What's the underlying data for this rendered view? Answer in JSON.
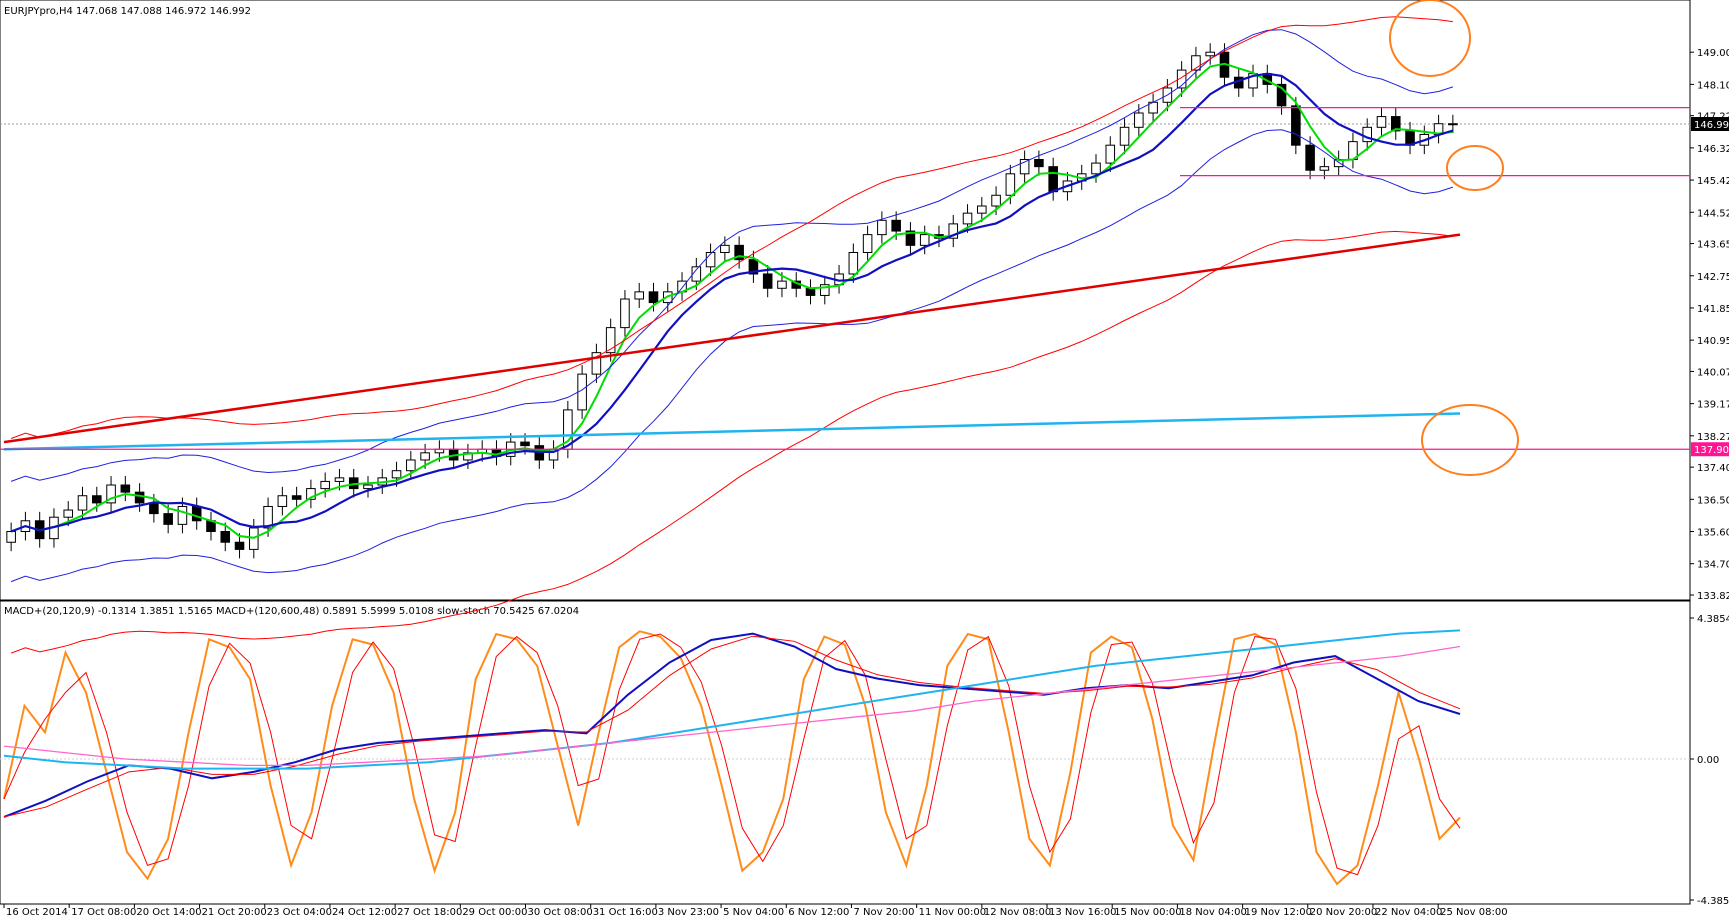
{
  "window": {
    "symbol_header": "EURJPYpro,H4  147.068 147.088 146.972 146.992",
    "indicator_header": "MACD+(20,120,9) -0.1314 1.3851 1.5165   MACD+(120,600,48) 0.5891 5.5999 5.0108   slow-stoch 70.5425 67.0204"
  },
  "chart_data": [
    {
      "type": "candlestick",
      "symbol": "EURJPYpro",
      "timeframe": "H4",
      "ohlc_last": {
        "open": 147.068,
        "high": 147.088,
        "low": 146.972,
        "close": 146.992
      },
      "ylim": [
        133.825,
        149.9
      ],
      "y_ticks": [
        "149.000",
        "148.100",
        "147.225",
        "146.325",
        "145.425",
        "144.525",
        "143.650",
        "142.750",
        "141.850",
        "140.950",
        "140.075",
        "139.175",
        "138.275",
        "137.400",
        "136.500",
        "135.600",
        "134.700",
        "133.825"
      ],
      "price_labels": {
        "current": "146.992",
        "level": "137.900"
      },
      "x_ticks": [
        "16 Oct 2014",
        "17 Oct 08:00",
        "20 Oct 14:00",
        "21 Oct 20:00",
        "23 Oct 04:00",
        "24 Oct 12:00",
        "27 Oct 18:00",
        "29 Oct 00:00",
        "30 Oct 08:00",
        "31 Oct 16:00",
        "3 Nov 23:00",
        "5 Nov 04:00",
        "6 Nov 12:00",
        "7 Nov 20:00",
        "11 Nov 00:00",
        "12 Nov 08:00",
        "13 Nov 16:00",
        "15 Nov 00:00",
        "18 Nov 04:00",
        "19 Nov 12:00",
        "20 Nov 20:00",
        "22 Nov 04:00",
        "25 Nov 08:00"
      ],
      "close_path": [
        135.6,
        135.9,
        135.4,
        136.0,
        136.2,
        136.6,
        136.4,
        136.9,
        136.7,
        136.4,
        136.1,
        135.8,
        136.3,
        135.9,
        135.6,
        135.3,
        135.1,
        135.7,
        136.3,
        136.6,
        136.5,
        136.8,
        137.0,
        137.1,
        136.8,
        136.9,
        137.1,
        137.3,
        137.6,
        137.8,
        137.9,
        137.6,
        137.8,
        137.9,
        137.7,
        138.1,
        138.0,
        137.6,
        137.9,
        139.0,
        140.0,
        140.6,
        141.3,
        142.1,
        142.3,
        142.0,
        142.3,
        142.6,
        143.0,
        143.4,
        143.6,
        143.2,
        142.8,
        142.4,
        142.6,
        142.4,
        142.2,
        142.5,
        142.8,
        143.4,
        143.9,
        144.3,
        144.0,
        143.6,
        143.9,
        143.8,
        144.2,
        144.5,
        144.7,
        145.0,
        145.6,
        146.0,
        145.8,
        145.1,
        145.4,
        145.6,
        145.9,
        146.4,
        146.9,
        147.3,
        147.6,
        148.0,
        148.5,
        148.9,
        149.0,
        148.3,
        148.0,
        148.4,
        148.1,
        147.5,
        146.4,
        145.7,
        145.8,
        146.0,
        146.5,
        146.9,
        147.2,
        146.8,
        146.4,
        146.7,
        147.0,
        146.992
      ],
      "horizontal_levels": [
        137.9,
        145.55,
        147.45
      ],
      "ma_long_points": [
        [
          0,
          137.9
        ],
        [
          1,
          138.9
        ]
      ],
      "ma_medium_points": [
        [
          0,
          138.1
        ],
        [
          1,
          143.9
        ]
      ]
    },
    {
      "type": "line",
      "indicators": [
        "MACD+(20,120,9)",
        "MACD+(120,600,48)",
        "slow-stoch"
      ],
      "values_shown": {
        "macd_20_120_9": [
          -0.1314,
          1.3851,
          1.5165
        ],
        "macd_120_600_48": [
          0.5891,
          5.5999,
          5.0108
        ],
        "slow_stoch": [
          70.5425,
          67.0204
        ]
      },
      "y_ticks": [
        "4.3854",
        "0.00",
        "-4.3854"
      ],
      "ylim": [
        -4.3854,
        4.3854
      ],
      "stoch_path": [
        35,
        70,
        60,
        90,
        75,
        45,
        15,
        5,
        20,
        60,
        95,
        92,
        80,
        40,
        10,
        30,
        70,
        95,
        93,
        75,
        35,
        8,
        30,
        80,
        97,
        95,
        85,
        55,
        25,
        60,
        92,
        98,
        96,
        88,
        70,
        40,
        8,
        15,
        35,
        80,
        96,
        93,
        70,
        30,
        10,
        40,
        85,
        97,
        95,
        60,
        20,
        10,
        45,
        90,
        96,
        92,
        65,
        25,
        12,
        55,
        95,
        97,
        93,
        60,
        15,
        3,
        10,
        40,
        75,
        50,
        20,
        28
      ],
      "macd_fast_path": [
        -1.8,
        -1.3,
        -0.7,
        -0.2,
        -0.3,
        -0.6,
        -0.4,
        -0.1,
        0.3,
        0.5,
        0.6,
        0.7,
        0.8,
        0.9,
        0.8,
        2.0,
        3.0,
        3.7,
        3.9,
        3.5,
        2.8,
        2.5,
        2.3,
        2.2,
        2.1,
        2.0,
        2.2,
        2.3,
        2.2,
        2.4,
        2.6,
        3.0,
        3.2,
        2.5,
        1.8,
        1.4
      ],
      "macd_slow_path": [
        0.1,
        -0.1,
        -0.2,
        -0.3,
        -0.3,
        -0.3,
        -0.2,
        -0.1,
        0.1,
        0.3,
        0.5,
        0.8,
        1.1,
        1.4,
        1.7,
        2.0,
        2.3,
        2.6,
        2.9,
        3.1,
        3.3,
        3.5,
        3.7,
        3.9,
        4.0
      ],
      "macd_slow_signal_path": [
        0.4,
        0.2,
        0.0,
        -0.1,
        -0.2,
        -0.2,
        -0.1,
        0.0,
        0.1,
        0.3,
        0.5,
        0.7,
        0.9,
        1.1,
        1.3,
        1.5,
        1.8,
        2.0,
        2.2,
        2.4,
        2.6,
        2.8,
        3.0,
        3.2,
        3.5
      ]
    }
  ],
  "colors": {
    "bollinger": "#2020e0",
    "envelope": "#ff0000",
    "ma_fast": "#00dd00",
    "ma_medium_blue": "#1010c0",
    "ma_long_red": "#e00000",
    "ma_cyan": "#1fb4ef",
    "level_magenta": "#ff1493",
    "stoch": "#ff8c1a",
    "annotation_circle": "#ff7f1e",
    "label_magenta_bg": "#ff1493"
  }
}
